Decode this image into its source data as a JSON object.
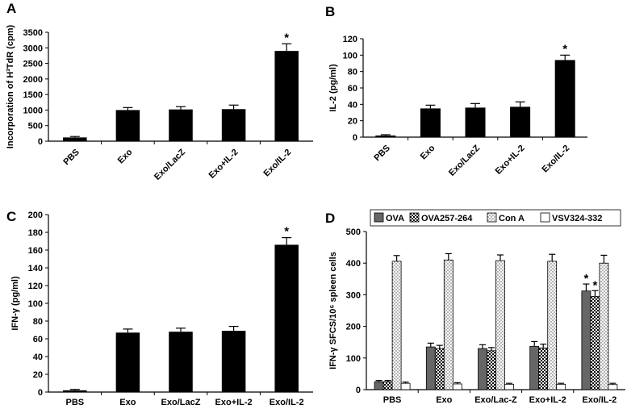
{
  "chart_data": [
    {
      "panel": "A",
      "type": "bar",
      "categories": [
        "PBS",
        "Exo",
        "Exo/LacZ",
        "Exo+IL-2",
        "Exo/IL-2"
      ],
      "values": [
        120,
        1000,
        1020,
        1030,
        2900
      ],
      "errors": [
        30,
        80,
        90,
        130,
        230
      ],
      "significant": [
        false,
        false,
        false,
        false,
        true
      ],
      "ylabel": "Incorporation of H³TdR (cpm)",
      "ylim": [
        0,
        3500
      ],
      "yticks": [
        0,
        500,
        1000,
        1500,
        2000,
        2500,
        3000,
        3500
      ],
      "significance_marker": "*",
      "color": "#000000"
    },
    {
      "panel": "B",
      "type": "bar",
      "categories": [
        "PBS",
        "Exo",
        "Exo/LacZ",
        "Exo+IL-2",
        "Exo/IL-2"
      ],
      "values": [
        2,
        35,
        36,
        37,
        94
      ],
      "errors": [
        1,
        4,
        5,
        6,
        6
      ],
      "significant": [
        false,
        false,
        false,
        false,
        true
      ],
      "ylabel": "IL-2 (pg/ml)",
      "ylim": [
        0,
        120
      ],
      "yticks": [
        0,
        20,
        40,
        60,
        80,
        100,
        120
      ],
      "significance_marker": "*",
      "color": "#000000"
    },
    {
      "panel": "C",
      "type": "bar",
      "categories": [
        "PBS",
        "Exo",
        "Exo/LacZ",
        "Exo+IL-2",
        "Exo/IL-2"
      ],
      "values": [
        2,
        67,
        68,
        69,
        166
      ],
      "errors": [
        1,
        4,
        4,
        5,
        8
      ],
      "significant": [
        false,
        false,
        false,
        false,
        true
      ],
      "ylabel": "IFN-γ  (pg/ml)",
      "ylim": [
        0,
        200
      ],
      "yticks": [
        0,
        20,
        40,
        60,
        80,
        100,
        120,
        140,
        160,
        180,
        200
      ],
      "significance_marker": "*",
      "color": "#000000"
    },
    {
      "panel": "D",
      "type": "bar",
      "categories": [
        "PBS",
        "Exo",
        "Exo/Lac-Z",
        "Exo+IL-2",
        "Exo/IL-2"
      ],
      "series": [
        {
          "name": "OVA",
          "values": [
            25,
            135,
            130,
            137,
            312
          ],
          "errors": [
            4,
            12,
            12,
            15,
            22
          ],
          "significant": [
            false,
            false,
            false,
            false,
            true
          ],
          "pattern": "solid-gray"
        },
        {
          "name": "OVA257-264",
          "values": [
            25,
            130,
            123,
            132,
            295
          ],
          "errors": [
            4,
            10,
            10,
            12,
            18
          ],
          "significant": [
            false,
            false,
            false,
            false,
            true
          ],
          "pattern": "checker"
        },
        {
          "name": "Con A",
          "values": [
            406,
            410,
            408,
            406,
            400
          ],
          "errors": [
            18,
            20,
            18,
            22,
            25
          ],
          "significant": [
            false,
            false,
            false,
            false,
            false
          ],
          "pattern": "dots"
        },
        {
          "name": "VSV324-332",
          "values": [
            20,
            18,
            17,
            17,
            16
          ],
          "errors": [
            4,
            4,
            3,
            3,
            4
          ],
          "significant": [
            false,
            false,
            false,
            false,
            false
          ],
          "pattern": "white"
        }
      ],
      "ylabel": "IFN-γ  SFCS/10⁶ spleen cells",
      "ylim": [
        0,
        500
      ],
      "yticks": [
        0,
        100,
        200,
        300,
        400,
        500
      ],
      "significance_marker": "*",
      "legend_position": "top"
    }
  ]
}
